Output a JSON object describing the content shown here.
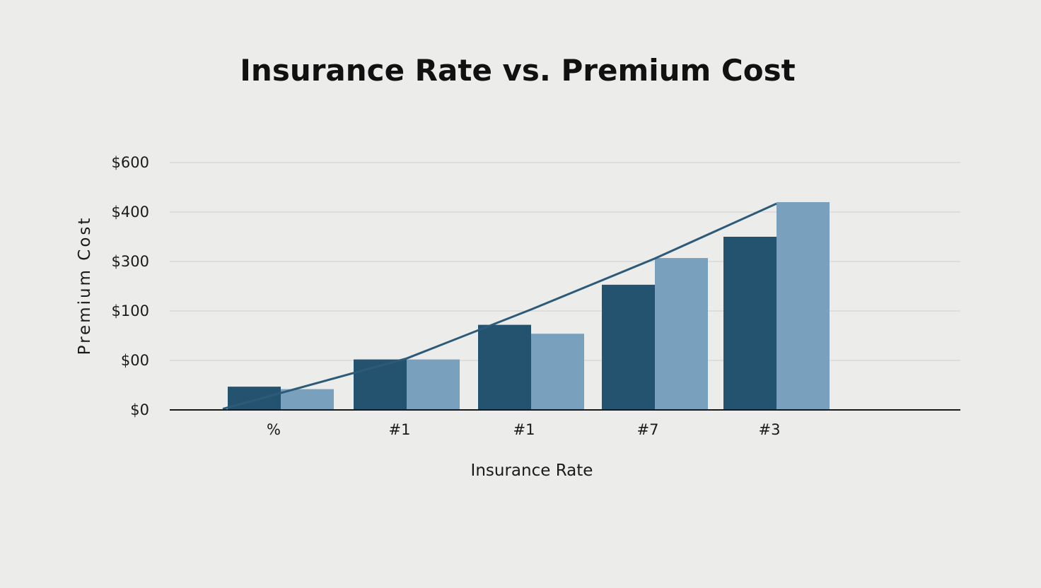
{
  "chart_data": {
    "type": "bar",
    "title": "Insurance Rate vs. Premium Cost",
    "xlabel": "Insurance Rate",
    "ylabel": "Premium Cost",
    "categories": [
      "%",
      "#1",
      "#1",
      "#7",
      "#3"
    ],
    "y_tick_labels": [
      "$0",
      "$00",
      "$100",
      "$300",
      "$400",
      "$600"
    ],
    "ylim": [
      0,
      5
    ],
    "series": [
      {
        "values": [
          0.47,
          1.02,
          1.72,
          2.53,
          3.5
        ],
        "color": "#24536f"
      },
      {
        "values": [
          0.42,
          1.02,
          1.54,
          3.07,
          4.2
        ],
        "color": "#79a1bd"
      }
    ],
    "trend_line": {
      "values": [
        0.02,
        1.04,
        2.03,
        3.06,
        4.17
      ],
      "color": "#2d5a78"
    },
    "grid": true,
    "legend": "none"
  }
}
